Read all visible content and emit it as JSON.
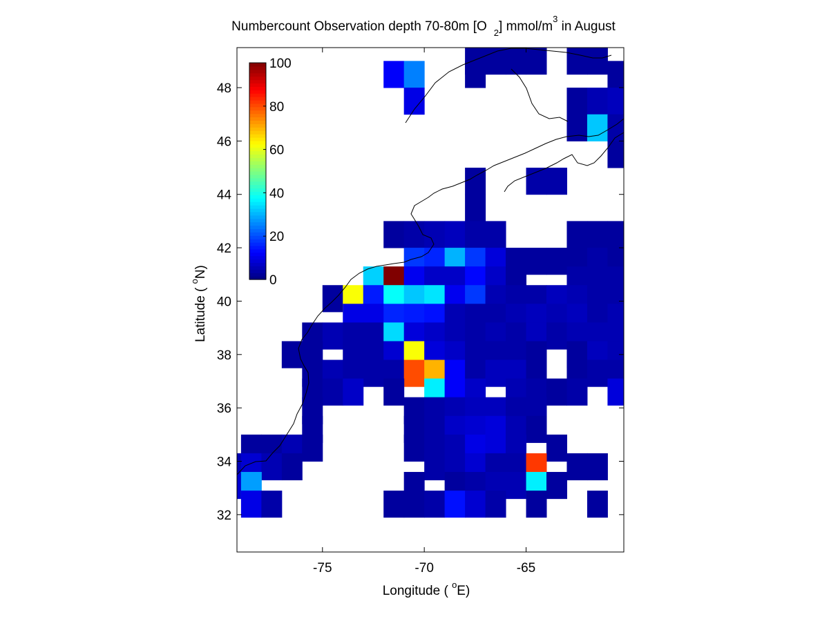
{
  "chart_data": {
    "type": "heatmap",
    "title": {
      "part1": "Numbercount Observation depth 70-80m [O",
      "sub": "2",
      "part2": "] mmol/m",
      "sup": "3",
      "part3": " in August"
    },
    "xlabel": {
      "pre": "Longitude ( ",
      "sup": "o",
      "post": "E)"
    },
    "ylabel": {
      "pre": "Latitude ( ",
      "sup": "o",
      "post": "N)"
    },
    "xlim": [
      -79.2,
      -60.2
    ],
    "ylim": [
      30.6,
      49.5
    ],
    "xticks": [
      -75,
      -70,
      -65
    ],
    "xtick_labels": [
      "-75",
      "-70",
      "-65"
    ],
    "yticks": [
      32,
      34,
      36,
      38,
      40,
      42,
      44,
      46,
      48
    ],
    "ytick_labels": [
      "32",
      "34",
      "36",
      "38",
      "40",
      "42",
      "44",
      "46",
      "48"
    ],
    "colorbar": {
      "colormap": "jet",
      "range": [
        0,
        100
      ],
      "ticks": [
        0,
        20,
        40,
        60,
        80,
        100
      ],
      "tick_labels": [
        "0",
        "20",
        "40",
        "60",
        "80",
        "100"
      ],
      "placement": "upper-left inset"
    },
    "grid": false,
    "cell_size_deg": 1,
    "cells": [
      [
        -67.5,
        49,
        3
      ],
      [
        -62.5,
        49,
        3
      ],
      [
        -61.5,
        49,
        3
      ],
      [
        -66.5,
        49,
        3
      ],
      [
        -65.5,
        49,
        3
      ],
      [
        -64.5,
        49,
        3
      ],
      [
        -71.5,
        48.5,
        12
      ],
      [
        -70.5,
        48.5,
        25
      ],
      [
        -67.5,
        48.5,
        3
      ],
      [
        -60.5,
        48.5,
        3
      ],
      [
        -70.5,
        47.5,
        10
      ],
      [
        -62.5,
        47.5,
        3
      ],
      [
        -61.5,
        47.5,
        5
      ],
      [
        -60.5,
        47.5,
        6
      ],
      [
        -62.5,
        46.5,
        3
      ],
      [
        -61.5,
        46.5,
        32
      ],
      [
        -60.5,
        46.5,
        4
      ],
      [
        -60.5,
        45.5,
        3
      ],
      [
        -67.5,
        44.5,
        3
      ],
      [
        -64.5,
        44.5,
        4
      ],
      [
        -63.5,
        44.5,
        4
      ],
      [
        -67.5,
        43.5,
        3
      ],
      [
        -71.5,
        42.5,
        3
      ],
      [
        -70.5,
        42.5,
        4
      ],
      [
        -69.5,
        42.5,
        5
      ],
      [
        -68.5,
        42.5,
        6
      ],
      [
        -67.5,
        42.5,
        4
      ],
      [
        -66.5,
        42.5,
        4
      ],
      [
        -62.5,
        42.5,
        3
      ],
      [
        -61.5,
        42.5,
        3
      ],
      [
        -60.5,
        42.5,
        3
      ],
      [
        -70.5,
        41.5,
        18
      ],
      [
        -69.5,
        41.5,
        16
      ],
      [
        -68.5,
        41.5,
        30
      ],
      [
        -67.5,
        41.5,
        18
      ],
      [
        -66.5,
        41.5,
        9
      ],
      [
        -65.5,
        41.5,
        3
      ],
      [
        -64.5,
        41.5,
        3
      ],
      [
        -63.5,
        41.5,
        3
      ],
      [
        -62.5,
        41.5,
        3
      ],
      [
        -61.5,
        41.5,
        4
      ],
      [
        -60.5,
        41.5,
        3
      ],
      [
        -72.5,
        40.8,
        33
      ],
      [
        -71.5,
        40.8,
        100
      ],
      [
        -70.5,
        40.8,
        11
      ],
      [
        -69.5,
        40.8,
        7
      ],
      [
        -68.5,
        40.8,
        7
      ],
      [
        -67.5,
        40.8,
        13
      ],
      [
        -66.5,
        40.8,
        7
      ],
      [
        -65.5,
        40.8,
        3
      ],
      [
        -62.5,
        40.8,
        4
      ],
      [
        -61.5,
        40.8,
        4
      ],
      [
        -60.5,
        40.8,
        4
      ],
      [
        -74.5,
        40.1,
        3
      ],
      [
        -73.5,
        40.1,
        62
      ],
      [
        -72.5,
        40.1,
        15
      ],
      [
        -71.5,
        40.1,
        38
      ],
      [
        -70.5,
        40.1,
        32
      ],
      [
        -69.5,
        40.1,
        35
      ],
      [
        -68.5,
        40.1,
        11
      ],
      [
        -67.5,
        40.1,
        18
      ],
      [
        -66.5,
        40.1,
        5
      ],
      [
        -65.5,
        40.1,
        4
      ],
      [
        -64.5,
        40.1,
        4
      ],
      [
        -63.5,
        40.1,
        6
      ],
      [
        -62.5,
        40.1,
        5
      ],
      [
        -61.5,
        40.1,
        4
      ],
      [
        -60.5,
        40.1,
        4
      ],
      [
        -73.5,
        39.4,
        10
      ],
      [
        -72.5,
        39.4,
        10
      ],
      [
        -71.5,
        39.4,
        16
      ],
      [
        -70.5,
        39.4,
        15
      ],
      [
        -69.5,
        39.4,
        14
      ],
      [
        -68.5,
        39.4,
        5
      ],
      [
        -67.5,
        39.4,
        4
      ],
      [
        -66.5,
        39.4,
        4
      ],
      [
        -65.5,
        39.4,
        5
      ],
      [
        -64.5,
        39.4,
        6
      ],
      [
        -63.5,
        39.4,
        5
      ],
      [
        -62.5,
        39.4,
        6
      ],
      [
        -61.5,
        39.4,
        4
      ],
      [
        -60.5,
        39.4,
        5
      ],
      [
        -75.5,
        38.7,
        3
      ],
      [
        -74.5,
        38.7,
        5
      ],
      [
        -73.5,
        38.7,
        4
      ],
      [
        -72.5,
        38.7,
        4
      ],
      [
        -71.5,
        38.7,
        34
      ],
      [
        -70.5,
        38.7,
        9
      ],
      [
        -69.5,
        38.7,
        7
      ],
      [
        -68.5,
        38.7,
        5
      ],
      [
        -67.5,
        38.7,
        4
      ],
      [
        -66.5,
        38.7,
        5
      ],
      [
        -65.5,
        38.7,
        4
      ],
      [
        -64.5,
        38.7,
        6
      ],
      [
        -63.5,
        38.7,
        4
      ],
      [
        -62.5,
        38.7,
        5
      ],
      [
        -61.5,
        38.7,
        5
      ],
      [
        -60.5,
        38.7,
        5
      ],
      [
        -76.5,
        38,
        3
      ],
      [
        -75.5,
        38,
        3
      ],
      [
        -73.5,
        38,
        4
      ],
      [
        -72.5,
        38,
        4
      ],
      [
        -71.5,
        38,
        8
      ],
      [
        -70.5,
        38,
        62
      ],
      [
        -69.5,
        38,
        9
      ],
      [
        -68.5,
        38,
        7
      ],
      [
        -67.5,
        38,
        4
      ],
      [
        -66.5,
        38,
        4
      ],
      [
        -65.5,
        38,
        4
      ],
      [
        -64.5,
        38,
        3
      ],
      [
        -62.5,
        38,
        3
      ],
      [
        -61.5,
        38,
        6
      ],
      [
        -60.5,
        38,
        5
      ],
      [
        -75.5,
        37.3,
        3
      ],
      [
        -74.5,
        37.3,
        5
      ],
      [
        -73.5,
        37.3,
        4
      ],
      [
        -72.5,
        37.3,
        4
      ],
      [
        -71.5,
        37.3,
        4
      ],
      [
        -70.5,
        37.3,
        80
      ],
      [
        -69.5,
        37.3,
        70
      ],
      [
        -68.5,
        37.3,
        12
      ],
      [
        -67.5,
        37.3,
        4
      ],
      [
        -66.5,
        37.3,
        6
      ],
      [
        -65.5,
        37.3,
        6
      ],
      [
        -64.5,
        37.3,
        3
      ],
      [
        -62.5,
        37.3,
        3
      ],
      [
        -61.5,
        37.3,
        4
      ],
      [
        -60.5,
        37.3,
        4
      ],
      [
        -75.5,
        36.6,
        3
      ],
      [
        -74.5,
        36.6,
        4
      ],
      [
        -73.5,
        36.6,
        7
      ],
      [
        -71.5,
        36.6,
        3
      ],
      [
        -69.5,
        36.6,
        36
      ],
      [
        -68.5,
        36.6,
        12
      ],
      [
        -67.5,
        36.6,
        7
      ],
      [
        -65.5,
        36.6,
        5
      ],
      [
        -64.5,
        36.6,
        4
      ],
      [
        -63.5,
        36.6,
        3
      ],
      [
        -62.5,
        36.6,
        4
      ],
      [
        -60.5,
        36.6,
        9
      ],
      [
        -75.5,
        35.9,
        3
      ],
      [
        -70.5,
        35.9,
        3
      ],
      [
        -69.5,
        35.9,
        4
      ],
      [
        -68.5,
        35.9,
        5
      ],
      [
        -67.5,
        35.9,
        6
      ],
      [
        -66.5,
        35.9,
        6
      ],
      [
        -65.5,
        35.9,
        4
      ],
      [
        -64.5,
        35.9,
        4
      ],
      [
        -75.5,
        35.2,
        3
      ],
      [
        -70.5,
        35.2,
        3
      ],
      [
        -69.5,
        35.2,
        4
      ],
      [
        -68.5,
        35.2,
        7
      ],
      [
        -67.5,
        35.2,
        8
      ],
      [
        -66.5,
        35.2,
        9
      ],
      [
        -65.5,
        35.2,
        5
      ],
      [
        -64.5,
        35.2,
        3
      ],
      [
        -78.5,
        34.5,
        3
      ],
      [
        -77.5,
        34.5,
        3
      ],
      [
        -76.5,
        34.5,
        5
      ],
      [
        -75.5,
        34.5,
        3
      ],
      [
        -70.5,
        34.5,
        3
      ],
      [
        -69.5,
        34.5,
        4
      ],
      [
        -68.5,
        34.5,
        5
      ],
      [
        -67.5,
        34.5,
        10
      ],
      [
        -66.5,
        34.5,
        9
      ],
      [
        -65.5,
        34.5,
        5
      ],
      [
        -63.5,
        34.5,
        3
      ],
      [
        -79.5,
        33.8,
        5
      ],
      [
        -78.5,
        33.8,
        8
      ],
      [
        -77.5,
        33.8,
        5
      ],
      [
        -76.5,
        33.8,
        3
      ],
      [
        -69.5,
        33.8,
        4
      ],
      [
        -68.5,
        33.8,
        5
      ],
      [
        -67.5,
        33.8,
        8
      ],
      [
        -66.5,
        33.8,
        4
      ],
      [
        -65.5,
        33.8,
        4
      ],
      [
        -64.5,
        33.8,
        82
      ],
      [
        -62.5,
        33.8,
        3
      ],
      [
        -61.5,
        33.8,
        3
      ],
      [
        -79.5,
        33.1,
        8
      ],
      [
        -78.5,
        33.1,
        28
      ],
      [
        -70.5,
        33.1,
        3
      ],
      [
        -68.5,
        33.1,
        3
      ],
      [
        -67.5,
        33.1,
        4
      ],
      [
        -66.5,
        33.1,
        5
      ],
      [
        -65.5,
        33.1,
        5
      ],
      [
        -64.5,
        33.1,
        36
      ],
      [
        -63.5,
        33.1,
        3
      ],
      [
        -78.5,
        32.4,
        10
      ],
      [
        -77.5,
        32.4,
        4
      ],
      [
        -71.5,
        32.4,
        3
      ],
      [
        -70.5,
        32.4,
        3
      ],
      [
        -69.5,
        32.4,
        4
      ],
      [
        -68.5,
        32.4,
        14
      ],
      [
        -67.5,
        32.4,
        8
      ],
      [
        -66.5,
        32.4,
        4
      ],
      [
        -64.5,
        32.4,
        3
      ],
      [
        -61.5,
        32.4,
        3
      ]
    ]
  }
}
